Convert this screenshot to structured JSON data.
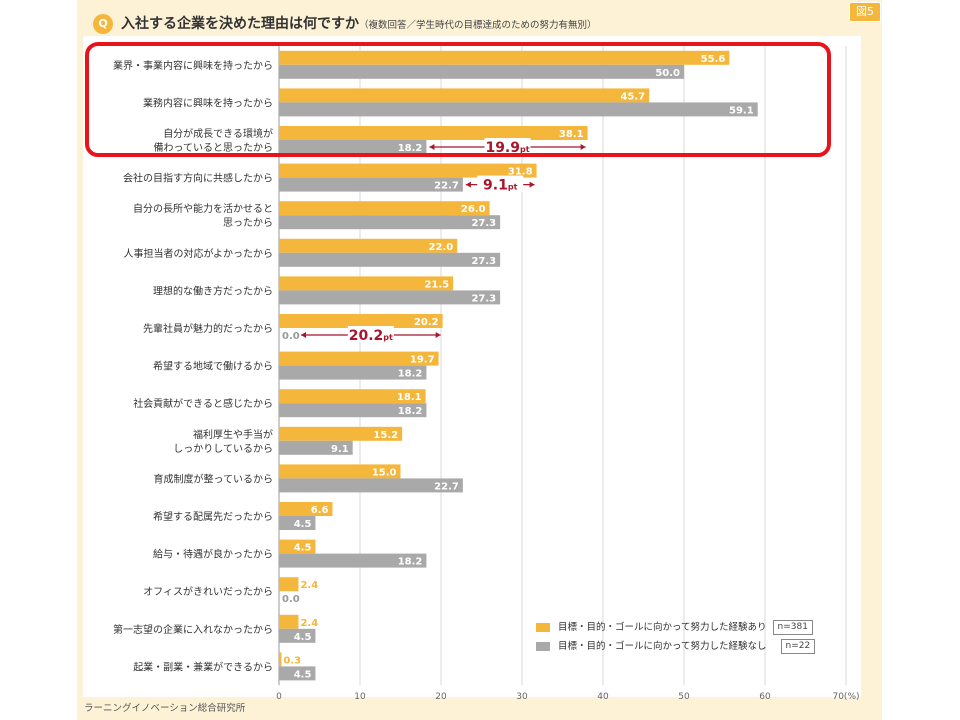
{
  "header": {
    "badge": "Q",
    "title": "入社する企業を決めた理由は何ですか",
    "subtitle": "（複数回答／学生時代の目標達成のための努力有無別）",
    "figure_label": "図5"
  },
  "footer": {
    "source": "ラーニングイノベーション総合研究所"
  },
  "legend": {
    "items": [
      {
        "label": "目標・目的・ゴールに向かって努力した経験あり",
        "n": "n=381",
        "color": "#f5b73b"
      },
      {
        "label": "目標・目的・ゴールに向かって努力した経験なし",
        "n": "n=22",
        "color": "#a9a9a9"
      }
    ]
  },
  "colors": {
    "series_a": "#f5b73b",
    "series_b": "#a9a9a9",
    "highlight": "#e8141b",
    "annotation": "#a8152c"
  },
  "chart_data": {
    "type": "bar",
    "orientation": "horizontal",
    "unit": "%",
    "xlim": [
      0,
      70
    ],
    "ticks": [
      0,
      10,
      20,
      30,
      40,
      50,
      60,
      70
    ],
    "tick_suffix": "(%)",
    "grid": true,
    "categories": [
      [
        "業界・事業内容に興味を持ったから"
      ],
      [
        "業務内容に興味を持ったから"
      ],
      [
        "自分が成長できる環境が",
        "備わっていると思ったから"
      ],
      [
        "会社の目指す方向に共感したから"
      ],
      [
        "自分の長所や能力を活かせると",
        "思ったから"
      ],
      [
        "人事担当者の対応がよかったから"
      ],
      [
        "理想的な働き方だったから"
      ],
      [
        "先輩社員が魅力的だったから"
      ],
      [
        "希望する地域で働けるから"
      ],
      [
        "社会貢献ができると感じたから"
      ],
      [
        "福利厚生や手当が",
        "しっかりしているから"
      ],
      [
        "育成制度が整っているから"
      ],
      [
        "希望する配属先だったから"
      ],
      [
        "給与・待遇が良かったから"
      ],
      [
        "オフィスがきれいだったから"
      ],
      [
        "第一志望の企業に入れなかったから"
      ],
      [
        "起業・副業・兼業ができるから"
      ]
    ],
    "series": [
      {
        "name": "目標・目的・ゴールに向かって努力した経験あり",
        "values": [
          55.6,
          45.7,
          38.1,
          31.8,
          26.0,
          22.0,
          21.5,
          20.2,
          19.7,
          18.1,
          15.2,
          15.0,
          6.6,
          4.5,
          2.4,
          2.4,
          0.3
        ],
        "labels": [
          "55.6",
          "45.7",
          "38.1",
          "31.8",
          "26.0",
          "22.0",
          "21.5",
          "20.2",
          "19.7",
          "18.1",
          "15.2",
          "15.0",
          "6.6",
          "4.5",
          "2.4",
          "2.4",
          "0.3"
        ]
      },
      {
        "name": "目標・目的・ゴールに向かって努力した経験なし",
        "values": [
          50.0,
          59.1,
          18.2,
          22.7,
          27.3,
          27.3,
          27.3,
          0.0,
          18.2,
          18.2,
          9.1,
          22.7,
          4.5,
          18.2,
          0.0,
          4.5,
          4.5
        ],
        "labels": [
          "50.0",
          "59.1",
          "18.2",
          "22.7",
          "27.3",
          "27.3",
          "27.3",
          "0.0",
          "18.2",
          "18.2",
          "9.1",
          "22.7",
          "4.5",
          "18.2",
          "0.0",
          "4.5",
          "4.5"
        ]
      }
    ],
    "annotations": [
      {
        "category_index": 2,
        "from": 18.2,
        "to": 38.1,
        "label_main": "19.9",
        "label_unit": "pt"
      },
      {
        "category_index": 3,
        "from": 22.7,
        "to": 31.8,
        "label_main": "9.1",
        "label_unit": "pt"
      },
      {
        "category_index": 7,
        "from": 0.0,
        "to": 20.2,
        "label_main": "20.2",
        "label_unit": "pt"
      }
    ],
    "highlighted_categories": [
      0,
      1,
      2
    ]
  }
}
